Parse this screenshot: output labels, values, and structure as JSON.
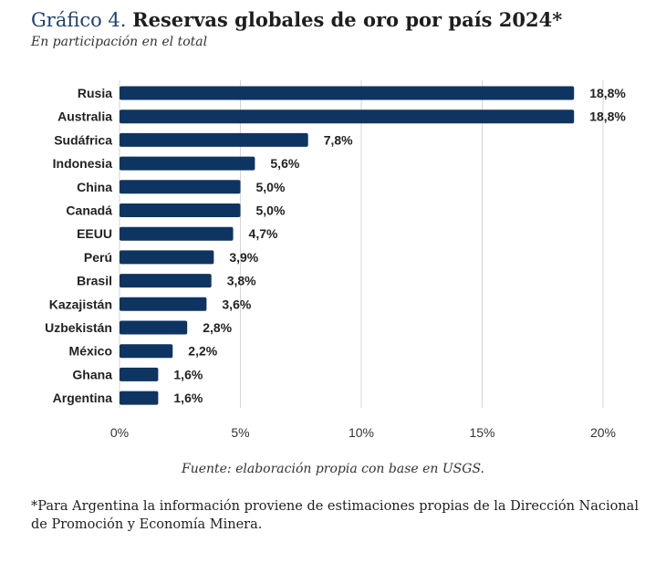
{
  "header": {
    "title_prefix": "Gráfico 4.",
    "title_main": "Reservas globales de oro por país 2024*",
    "subtitle": "En participación en el total"
  },
  "chart_data": {
    "type": "bar",
    "orientation": "horizontal",
    "title": "Reservas globales de oro por país 2024*",
    "subtitle": "En participación en el total",
    "categories": [
      "Rusia",
      "Australia",
      "Sudáfrica",
      "Indonesia",
      "China",
      "Canadá",
      "EEUU",
      "Perú",
      "Brasil",
      "Kazajistán",
      "Uzbekistán",
      "México",
      "Ghana",
      "Argentina"
    ],
    "values": [
      18.8,
      18.8,
      7.8,
      5.6,
      5.0,
      5.0,
      4.7,
      3.9,
      3.8,
      3.6,
      2.8,
      2.2,
      1.6,
      1.6
    ],
    "value_labels": [
      "18,8%",
      "18,8%",
      "7,8%",
      "5,6%",
      "5,0%",
      "5,0%",
      "4,7%",
      "3,9%",
      "3,8%",
      "3,6%",
      "2,8%",
      "2,2%",
      "1,6%",
      "1,6%"
    ],
    "xlim": [
      0,
      20
    ],
    "xticks": [
      0,
      5,
      10,
      15,
      20
    ],
    "xtick_labels": [
      "0%",
      "5%",
      "10%",
      "15%",
      "20%"
    ],
    "grid": "vertical",
    "bar_color": "#0e3561",
    "grid_color": "#d5d5d5"
  },
  "footer": {
    "source": "Fuente: elaboración propia con base en USGS.",
    "note": "*Para Argentina la información proviene de estimaciones propias de la Dirección Nacional de Promoción y Economía Minera."
  }
}
